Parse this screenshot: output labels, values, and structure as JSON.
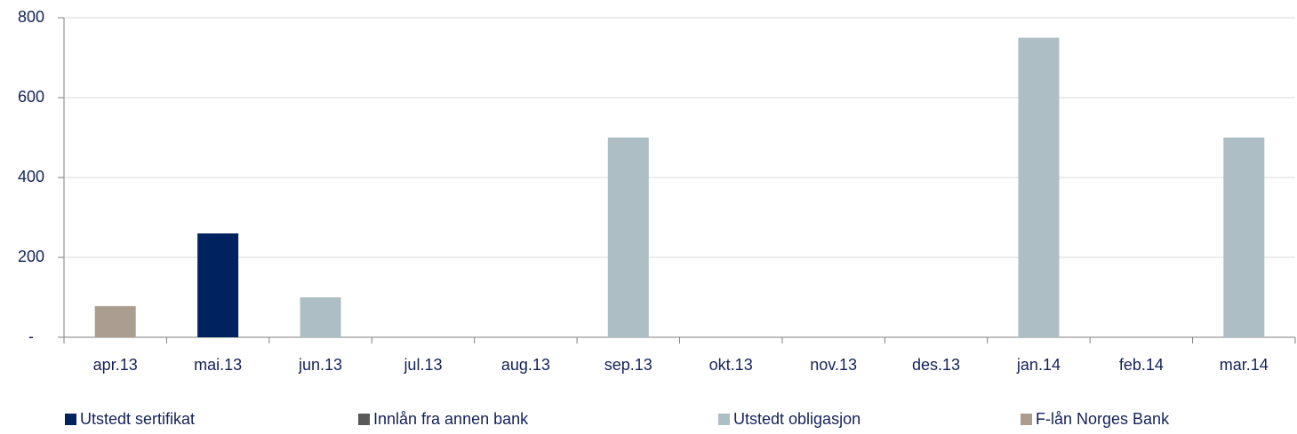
{
  "chart_data": {
    "type": "stacked_bar",
    "categories": [
      "apr.13",
      "mai.13",
      "jun.13",
      "jul.13",
      "aug.13",
      "sep.13",
      "okt.13",
      "nov.13",
      "des.13",
      "jan.14",
      "feb.14",
      "mar.14"
    ],
    "series": [
      {
        "name": "Utstedt sertifikat",
        "color": "#00225f",
        "values": [
          0,
          260,
          0,
          0,
          0,
          0,
          0,
          0,
          0,
          0,
          0,
          0
        ]
      },
      {
        "name": "Innlån fra annen bank",
        "color": "#595959",
        "values": [
          0,
          0,
          0,
          0,
          0,
          0,
          0,
          0,
          0,
          0,
          0,
          0
        ]
      },
      {
        "name": "Utstedt obligasjon",
        "color": "#adbec4",
        "values": [
          0,
          0,
          100,
          0,
          0,
          500,
          0,
          0,
          0,
          750,
          0,
          500
        ]
      },
      {
        "name": "F-lån Norges Bank",
        "color": "#ab9d8f",
        "values": [
          78,
          0,
          0,
          0,
          0,
          0,
          0,
          0,
          0,
          0,
          0,
          0
        ]
      }
    ],
    "ylim": [
      0,
      800
    ],
    "yticks": [
      {
        "value": 0,
        "label": "-"
      },
      200,
      400,
      600,
      800
    ],
    "grid": true,
    "legend": "bottom"
  }
}
